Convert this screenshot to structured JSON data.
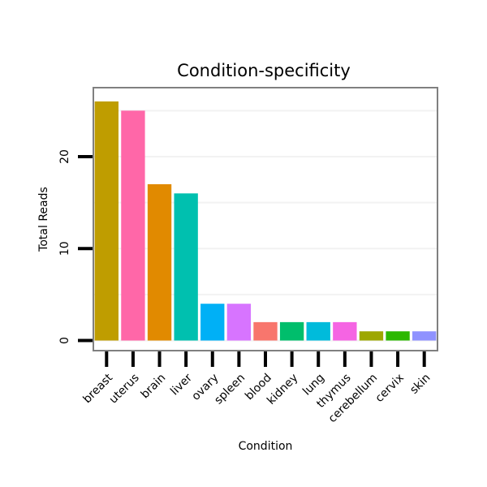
{
  "chart_data": {
    "type": "bar",
    "title": "Condition-specificity",
    "xlabel": "Condition",
    "ylabel": "Total Reads",
    "ylim": [
      -1.1,
      27.5
    ],
    "yticks": [
      0,
      10,
      20
    ],
    "minor_grid": [
      5,
      15,
      25
    ],
    "grid": true,
    "legend": "none",
    "categories": [
      "breast",
      "uterus",
      "brain",
      "liver",
      "ovary",
      "spleen",
      "blood",
      "kidney",
      "lung",
      "thymus",
      "cerebellum",
      "cervix",
      "skin"
    ],
    "values": [
      26,
      25,
      17,
      16,
      4,
      4,
      2,
      2,
      2,
      2,
      1,
      1,
      1
    ],
    "colors": [
      "#BF9D00",
      "#FF67A8",
      "#E18A00",
      "#00C0AF",
      "#00B0F6",
      "#D774FF",
      "#F8766D",
      "#00BE6C",
      "#00BBDB",
      "#F564E3",
      "#9DA700",
      "#2CB800",
      "#8F92FF"
    ]
  }
}
